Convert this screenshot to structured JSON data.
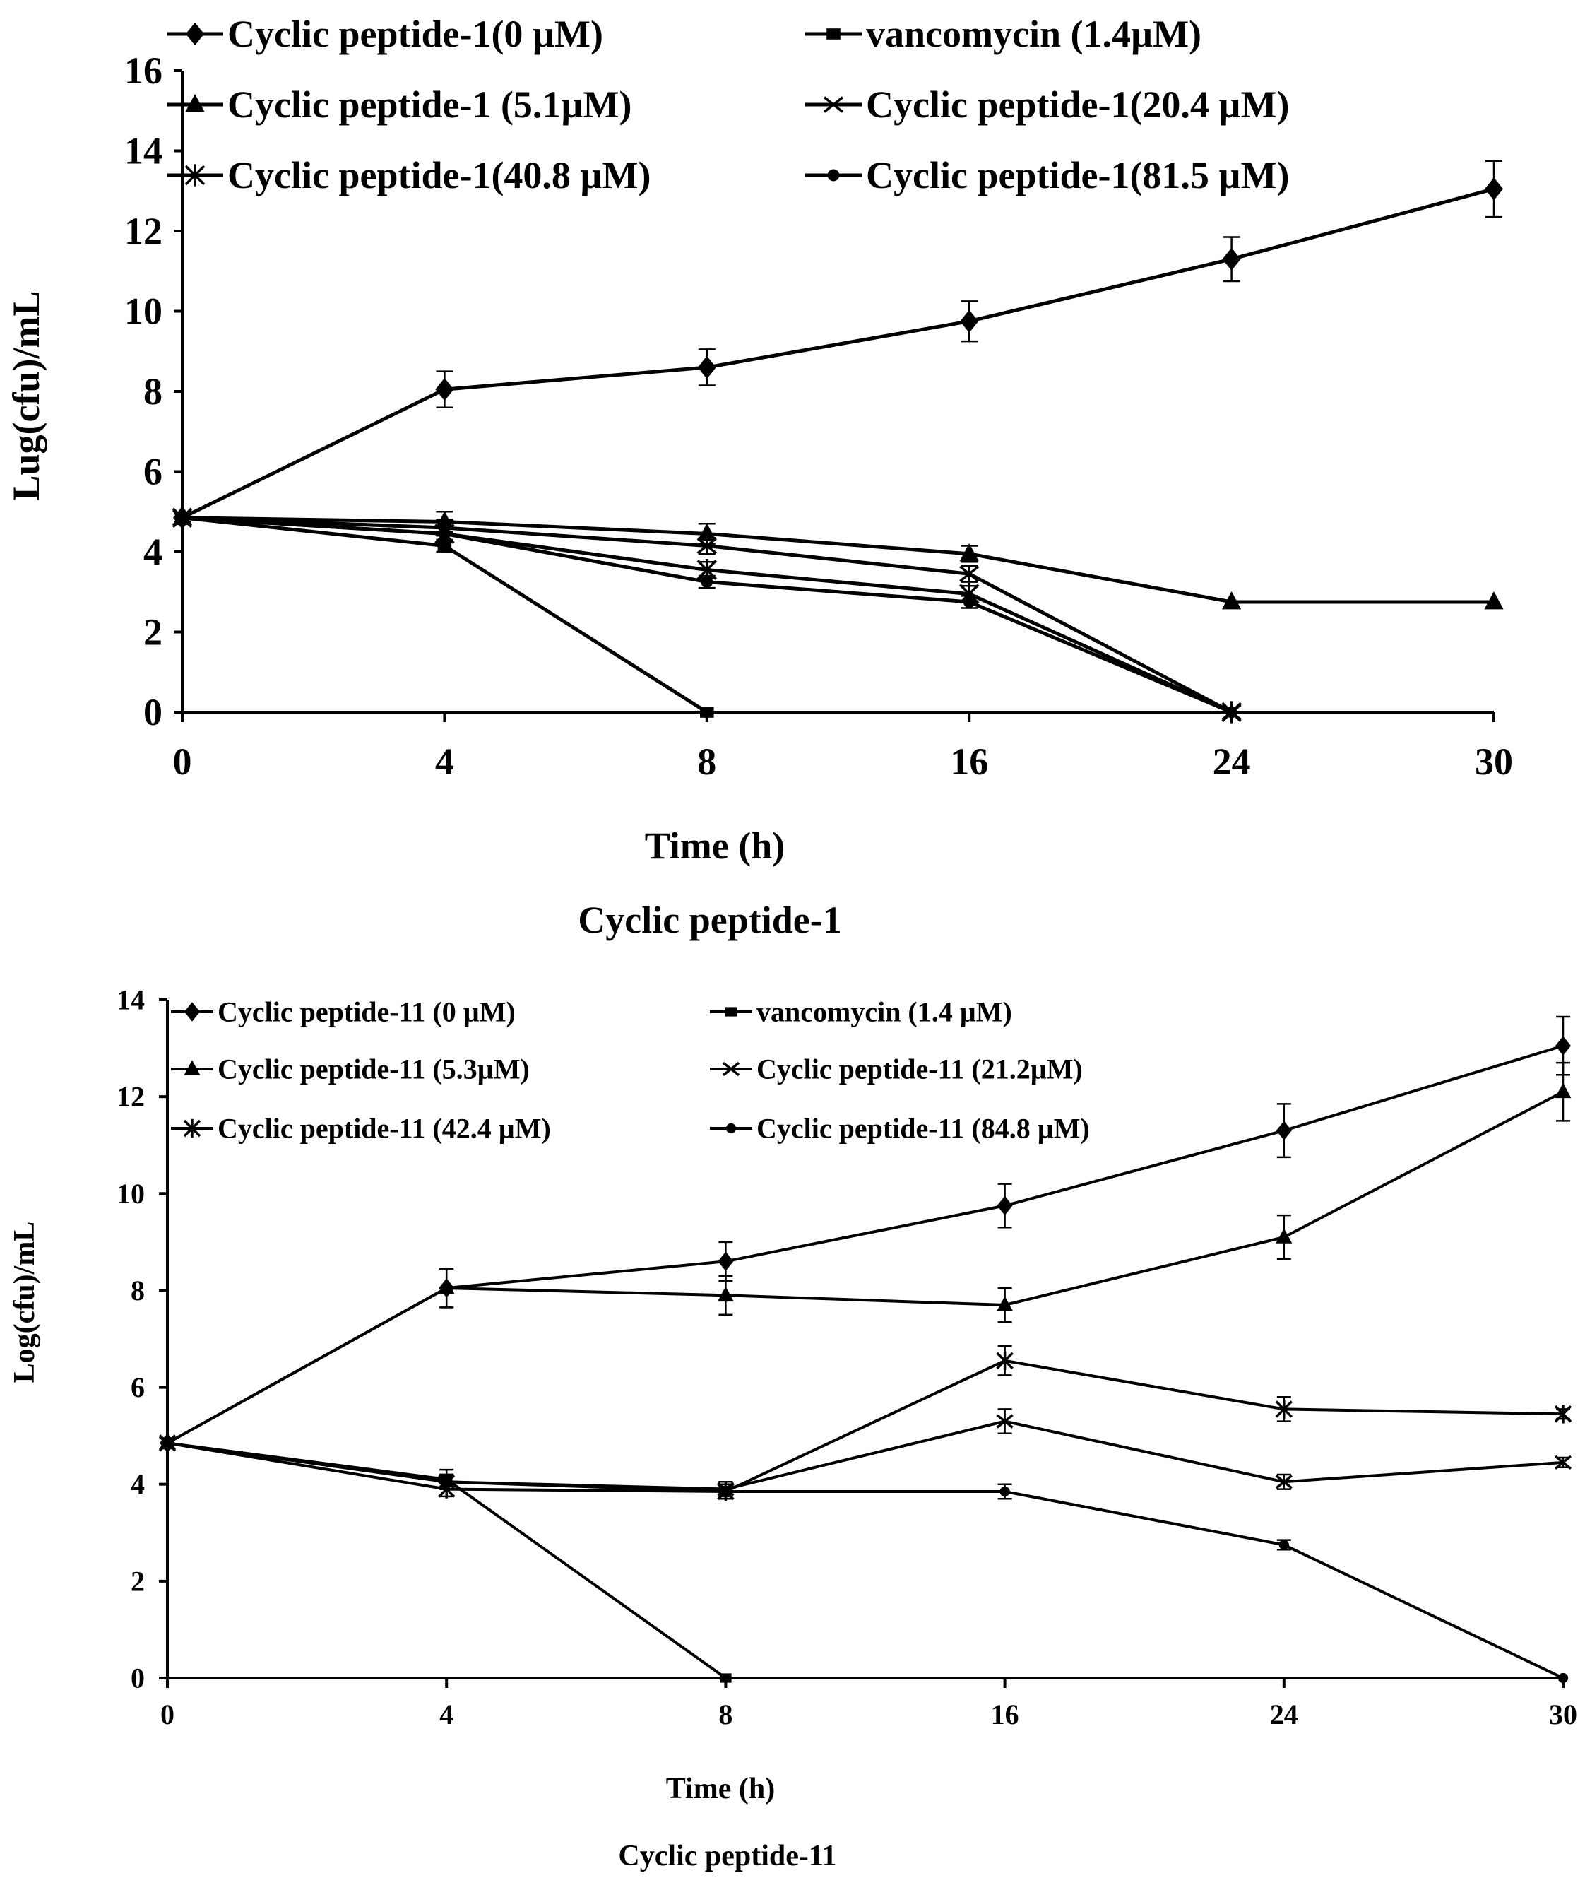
{
  "chart_data": [
    {
      "type": "line",
      "title": "Cyclic  peptide-1",
      "xlabel": "Time (h)",
      "ylabel": "Lug(cfu)/mL",
      "categories": [
        "0",
        "4",
        "8",
        "16",
        "24",
        "30"
      ],
      "yticks": [
        "0",
        "2",
        "4",
        "6",
        "8",
        "10",
        "12",
        "14",
        "16"
      ],
      "ylim": [
        0,
        16
      ],
      "grid": false,
      "legend_position": "top",
      "series": [
        {
          "name": "Cyclic peptide-1(0 µM)",
          "marker": "diamond",
          "values": [
            4.85,
            8.05,
            8.6,
            9.75,
            11.3,
            13.05
          ],
          "errors": [
            0.1,
            0.45,
            0.45,
            0.5,
            0.55,
            0.7
          ]
        },
        {
          "name": "vancomycin (1.4µM)",
          "marker": "square",
          "values": [
            4.85,
            4.15,
            0.0,
            null,
            null,
            null
          ],
          "errors": [
            0.1,
            0.15,
            0,
            0,
            0,
            0
          ]
        },
        {
          "name": "Cyclic peptide-1 (5.1µM)",
          "marker": "triangle",
          "values": [
            4.85,
            4.75,
            4.45,
            3.95,
            2.75,
            2.75
          ],
          "errors": [
            0.1,
            0.25,
            0.25,
            0.2,
            0,
            0
          ]
        },
        {
          "name": "Cyclic peptide-1(20.4 µM)",
          "marker": "x",
          "values": [
            4.85,
            4.6,
            4.15,
            3.45,
            0.0,
            null
          ],
          "errors": [
            0.1,
            0.2,
            0.2,
            0.2,
            0,
            0
          ]
        },
        {
          "name": "Cyclic peptide-1(40.8 µM)",
          "marker": "asterisk",
          "values": [
            4.85,
            4.45,
            3.55,
            2.95,
            0.0,
            null
          ],
          "errors": [
            0.1,
            0.2,
            0.2,
            0.2,
            0,
            0
          ]
        },
        {
          "name": "Cyclic peptide-1(81.5 µM)",
          "marker": "circle",
          "values": [
            4.85,
            4.45,
            3.25,
            2.75,
            0.0,
            null
          ],
          "errors": [
            0.1,
            0.2,
            0.15,
            0.15,
            0,
            0
          ]
        }
      ]
    },
    {
      "type": "line",
      "title": "Cyclic peptide-11",
      "xlabel": "Time (h)",
      "ylabel": "Log(cfu)/mL",
      "categories": [
        "0",
        "4",
        "8",
        "16",
        "24",
        "30"
      ],
      "yticks": [
        "0",
        "2",
        "4",
        "6",
        "8",
        "10",
        "12",
        "14"
      ],
      "ylim": [
        0,
        14
      ],
      "grid": false,
      "legend_position": "top",
      "series": [
        {
          "name": "Cyclic peptide-11 (0 µM)",
          "marker": "diamond",
          "values": [
            4.85,
            8.05,
            8.6,
            9.75,
            11.3,
            13.05
          ],
          "errors": [
            0.1,
            0.4,
            0.4,
            0.45,
            0.55,
            0.6
          ]
        },
        {
          "name": "vancomycin (1.4 µM)",
          "marker": "square",
          "values": [
            4.85,
            4.1,
            0.0,
            null,
            null,
            null
          ],
          "errors": [
            0.1,
            0.2,
            0,
            0,
            0,
            0
          ]
        },
        {
          "name": "Cyclic peptide-11 (5.3µM)",
          "marker": "triangle",
          "values": [
            4.85,
            8.05,
            7.9,
            7.7,
            9.1,
            12.1
          ],
          "errors": [
            0.1,
            0.4,
            0.4,
            0.35,
            0.45,
            0.6
          ]
        },
        {
          "name": "Cyclic peptide-11 (21.2µM)",
          "marker": "x",
          "values": [
            4.85,
            4.05,
            3.9,
            5.3,
            4.05,
            4.45
          ],
          "errors": [
            0.1,
            0.15,
            0.15,
            0.25,
            0.15,
            0.1
          ]
        },
        {
          "name": "Cyclic peptide-11 (42.4 µM)",
          "marker": "asterisk",
          "values": [
            4.85,
            3.9,
            3.85,
            6.55,
            5.55,
            5.45
          ],
          "errors": [
            0.1,
            0.15,
            0.15,
            0.3,
            0.25,
            0.1
          ]
        },
        {
          "name": "Cyclic peptide-11 (84.8 µM)",
          "marker": "circle",
          "values": [
            4.85,
            4.05,
            3.85,
            3.85,
            2.75,
            0.0
          ],
          "errors": [
            0.1,
            0.15,
            0.1,
            0.15,
            0.1,
            0
          ]
        }
      ]
    }
  ]
}
